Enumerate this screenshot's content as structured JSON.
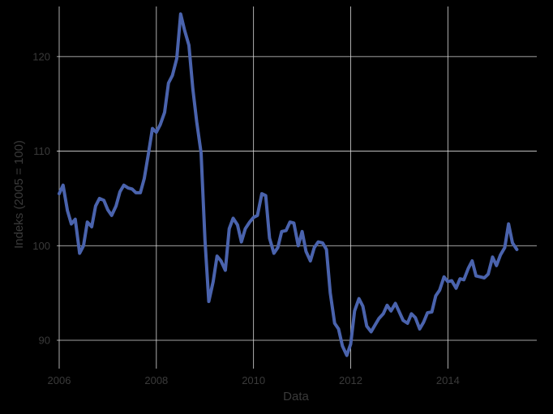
{
  "chart_data": {
    "type": "line",
    "title": "",
    "xlabel": "Data",
    "ylabel": "Indeks (2005 = 100)",
    "x_ticks": [
      "2006",
      "2008",
      "2010",
      "2012",
      "2014"
    ],
    "x_tick_values": [
      2006,
      2008,
      2010,
      2012,
      2014
    ],
    "y_ticks": [
      "90",
      "100",
      "110",
      "120"
    ],
    "y_tick_values": [
      90,
      100,
      110,
      120
    ],
    "xlim": [
      2005.95,
      2015.83
    ],
    "ylim": [
      87.0,
      125.3
    ],
    "grid": true,
    "legend": "none",
    "colors": {
      "background": "#000000",
      "grid": "#d9d9d9",
      "line": "#4a63ad",
      "text": "#3a3a3a"
    },
    "series": [
      {
        "x": [
          2006.0,
          2006.08,
          2006.17,
          2006.25,
          2006.33,
          2006.42,
          2006.5,
          2006.58,
          2006.67,
          2006.75,
          2006.83,
          2006.92,
          2007.0,
          2007.08,
          2007.17,
          2007.25,
          2007.33,
          2007.42,
          2007.5,
          2007.58,
          2007.67,
          2007.75,
          2007.83,
          2007.92,
          2008.0,
          2008.08,
          2008.17,
          2008.25,
          2008.33,
          2008.42,
          2008.5,
          2008.58,
          2008.67,
          2008.75,
          2008.83,
          2008.92,
          2009.0,
          2009.08,
          2009.17,
          2009.25,
          2009.33,
          2009.42,
          2009.5,
          2009.58,
          2009.67,
          2009.75,
          2009.83,
          2009.92,
          2010.0,
          2010.08,
          2010.17,
          2010.25,
          2010.33,
          2010.42,
          2010.5,
          2010.58,
          2010.67,
          2010.75,
          2010.83,
          2010.92,
          2011.0,
          2011.08,
          2011.17,
          2011.25,
          2011.33,
          2011.42,
          2011.5,
          2011.58,
          2011.67,
          2011.75,
          2011.83,
          2011.92,
          2012.0,
          2012.08,
          2012.17,
          2012.25,
          2012.33,
          2012.42,
          2012.5,
          2012.58,
          2012.67,
          2012.75,
          2012.83,
          2012.92,
          2013.0,
          2013.08,
          2013.17,
          2013.25,
          2013.33,
          2013.42,
          2013.5,
          2013.58,
          2013.67,
          2013.75,
          2013.83,
          2013.92,
          2014.0,
          2014.08,
          2014.17,
          2014.25,
          2014.33,
          2014.42,
          2014.5,
          2014.58,
          2014.67,
          2014.75,
          2014.83,
          2014.92,
          2015.0,
          2015.08,
          2015.17,
          2015.25,
          2015.33,
          2015.42
        ],
        "values": [
          105.5,
          106.4,
          103.7,
          102.3,
          102.8,
          99.2,
          100.0,
          102.5,
          102.0,
          104.2,
          105.0,
          104.8,
          103.8,
          103.2,
          104.2,
          105.7,
          106.4,
          106.1,
          106.0,
          105.6,
          105.6,
          107.1,
          109.5,
          112.4,
          112.0,
          112.8,
          114.1,
          117.2,
          118.0,
          119.8,
          124.5,
          122.8,
          121.2,
          116.6,
          113.1,
          109.8,
          100.6,
          94.1,
          96.2,
          98.9,
          98.4,
          97.4,
          101.8,
          102.9,
          102.2,
          100.4,
          101.8,
          102.5,
          103.0,
          103.2,
          105.5,
          105.3,
          100.8,
          99.2,
          99.8,
          101.5,
          101.6,
          102.5,
          102.4,
          100.0,
          101.5,
          99.4,
          98.4,
          99.8,
          100.4,
          100.3,
          99.6,
          95.0,
          91.8,
          91.2,
          89.4,
          88.4,
          89.6,
          93.1,
          94.4,
          93.6,
          91.5,
          90.9,
          91.6,
          92.3,
          92.8,
          93.7,
          93.1,
          93.9,
          93.0,
          92.1,
          91.8,
          92.8,
          92.4,
          91.2,
          91.9,
          92.9,
          93.0,
          94.7,
          95.3,
          96.7,
          96.2,
          96.3,
          95.5,
          96.5,
          96.4,
          97.6,
          98.4,
          96.8,
          96.7,
          96.6,
          97.0,
          98.8,
          97.9,
          99.0,
          99.8,
          102.3,
          100.3,
          99.6
        ]
      }
    ]
  }
}
